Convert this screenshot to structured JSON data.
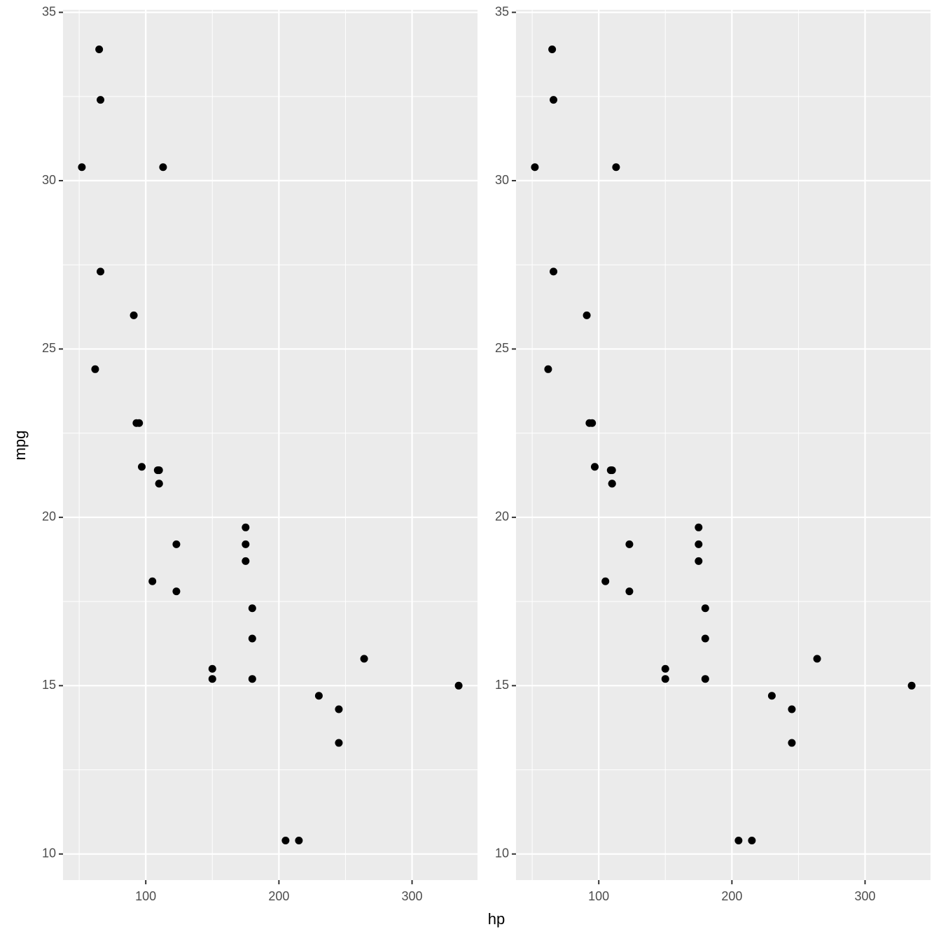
{
  "chart_data": [
    {
      "type": "scatter",
      "xlabel": "hp",
      "ylabel": "mpg",
      "color": "#000000",
      "grid": true,
      "x": [
        110,
        110,
        93,
        110,
        175,
        105,
        245,
        62,
        95,
        123,
        123,
        180,
        180,
        180,
        205,
        215,
        230,
        66,
        52,
        65,
        97,
        150,
        150,
        245,
        175,
        66,
        91,
        113,
        264,
        175,
        335,
        109
      ],
      "y": [
        21.0,
        21.0,
        22.8,
        21.4,
        18.7,
        18.1,
        14.3,
        24.4,
        22.8,
        19.2,
        17.8,
        16.4,
        17.3,
        15.2,
        10.4,
        10.4,
        14.7,
        32.4,
        30.4,
        33.9,
        21.5,
        15.5,
        15.2,
        13.3,
        19.2,
        27.3,
        26.0,
        30.4,
        15.8,
        19.7,
        15.0,
        21.4
      ],
      "xlim": [
        37.85,
        349.15
      ],
      "ylim": [
        9.225,
        35.075
      ],
      "xticks": [
        100,
        200,
        300
      ],
      "yticks": [
        10,
        15,
        20,
        25,
        30,
        35
      ]
    },
    {
      "type": "scatter",
      "color": "#000000",
      "grid": true,
      "x": [
        110,
        110,
        93,
        110,
        175,
        105,
        245,
        62,
        95,
        123,
        123,
        180,
        180,
        180,
        205,
        215,
        230,
        66,
        52,
        65,
        97,
        150,
        150,
        245,
        175,
        66,
        91,
        113,
        264,
        175,
        335,
        109
      ],
      "y": [
        21.0,
        21.0,
        22.8,
        21.4,
        18.7,
        18.1,
        14.3,
        24.4,
        22.8,
        19.2,
        17.8,
        16.4,
        17.3,
        15.2,
        10.4,
        10.4,
        14.7,
        32.4,
        30.4,
        33.9,
        21.5,
        15.5,
        15.2,
        13.3,
        19.2,
        27.3,
        26.0,
        30.4,
        15.8,
        19.7,
        15.0,
        21.4
      ],
      "xlim": [
        37.85,
        349.15
      ],
      "ylim": [
        9.225,
        35.075
      ],
      "xticks": [
        100,
        200,
        300
      ],
      "yticks": [
        10,
        15,
        20,
        25,
        30,
        35
      ]
    }
  ]
}
